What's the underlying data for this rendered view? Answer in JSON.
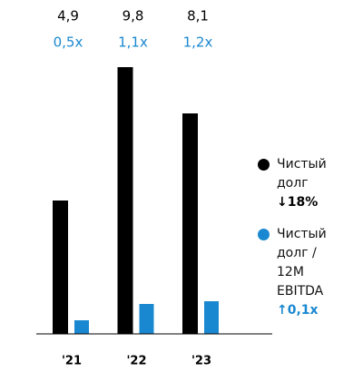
{
  "chart_data": {
    "type": "bar",
    "categories": [
      "'21",
      "'22",
      "'23"
    ],
    "series": [
      {
        "name": "Чистый долг",
        "color": "#000000",
        "values": [
          4.9,
          9.8,
          8.1
        ],
        "value_labels": [
          "4,9",
          "9,8",
          "8,1"
        ],
        "change": "↓18%",
        "change_color": "#000000"
      },
      {
        "name": "Чистый долг / 12M EBITDA",
        "color": "#1a88d0",
        "values": [
          0.5,
          1.1,
          1.2
        ],
        "value_labels": [
          "0,5x",
          "1,1x",
          "1,2x"
        ],
        "change": "↑0,1x",
        "change_color": "#1a88d0"
      }
    ],
    "ylim": [
      0,
      10
    ]
  }
}
